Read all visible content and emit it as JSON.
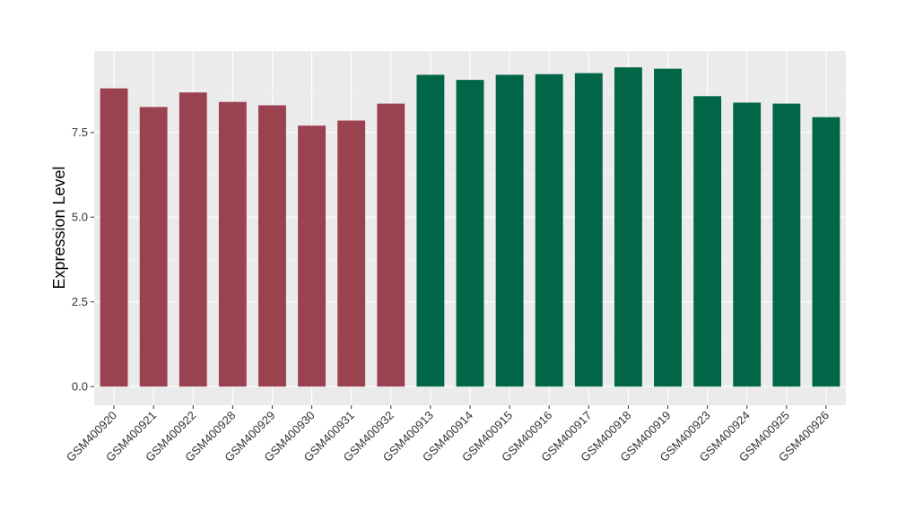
{
  "chart_data": {
    "type": "bar",
    "title": "",
    "xlabel": "",
    "ylabel": "Expression Level",
    "ylim": [
      -0.55,
      9.9
    ],
    "yticks": [
      "0.0",
      "2.5",
      "5.0",
      "7.5"
    ],
    "ytick_values": [
      0,
      2.5,
      5.0,
      7.5
    ],
    "grid": true,
    "legend": "none",
    "background": "#ebebeb",
    "categories": [
      "GSM400920",
      "GSM400921",
      "GSM400922",
      "GSM400928",
      "GSM400929",
      "GSM400930",
      "GSM400931",
      "GSM400932",
      "GSM400913",
      "GSM400914",
      "GSM400915",
      "GSM400916",
      "GSM400917",
      "GSM400918",
      "GSM400919",
      "GSM400923",
      "GSM400924",
      "GSM400925",
      "GSM400926"
    ],
    "values": [
      8.8,
      8.25,
      8.68,
      8.4,
      8.3,
      7.7,
      7.85,
      8.35,
      9.2,
      9.05,
      9.2,
      9.22,
      9.25,
      9.42,
      9.38,
      8.57,
      8.38,
      8.35,
      7.95
    ],
    "groups": [
      "group-1",
      "group-1",
      "group-1",
      "group-1",
      "group-1",
      "group-1",
      "group-1",
      "group-1",
      "group-2",
      "group-2",
      "group-2",
      "group-2",
      "group-2",
      "group-2",
      "group-2",
      "group-2",
      "group-2",
      "group-2",
      "group-2"
    ],
    "colors": {
      "group-1": "#9b4250",
      "group-2": "#006647"
    }
  }
}
